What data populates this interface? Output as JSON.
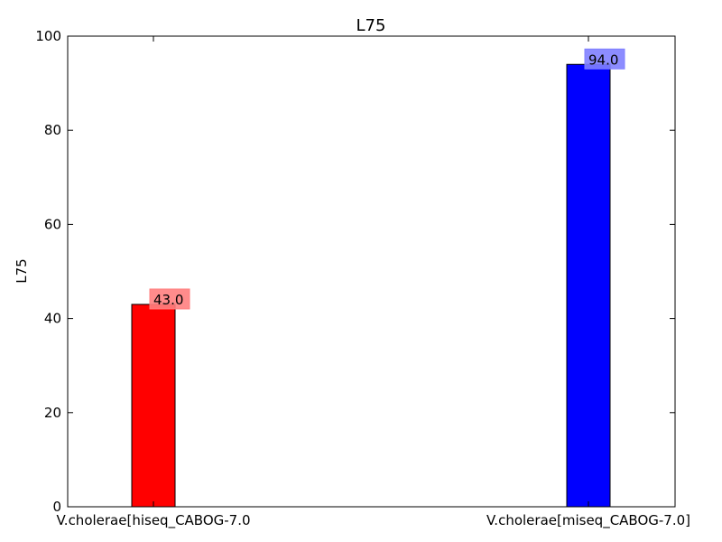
{
  "chart_data": {
    "type": "bar",
    "title": "L75",
    "xlabel": "",
    "ylabel": "L75",
    "ylim": [
      0,
      100
    ],
    "yticks": [
      0,
      20,
      40,
      60,
      80,
      100
    ],
    "categories": [
      "V.cholerae[hiseq_CABOG-7.0",
      "V.cholerae[miseq_CABOG-7.0]"
    ],
    "values": [
      43.0,
      94.0
    ],
    "data_labels": [
      "43.0",
      "94.0"
    ],
    "colors": [
      "#ff0000",
      "#0000ff"
    ],
    "label_box_colors": [
      "#ff7f7f",
      "#7f7fff"
    ],
    "grid": false,
    "legend": "none"
  }
}
